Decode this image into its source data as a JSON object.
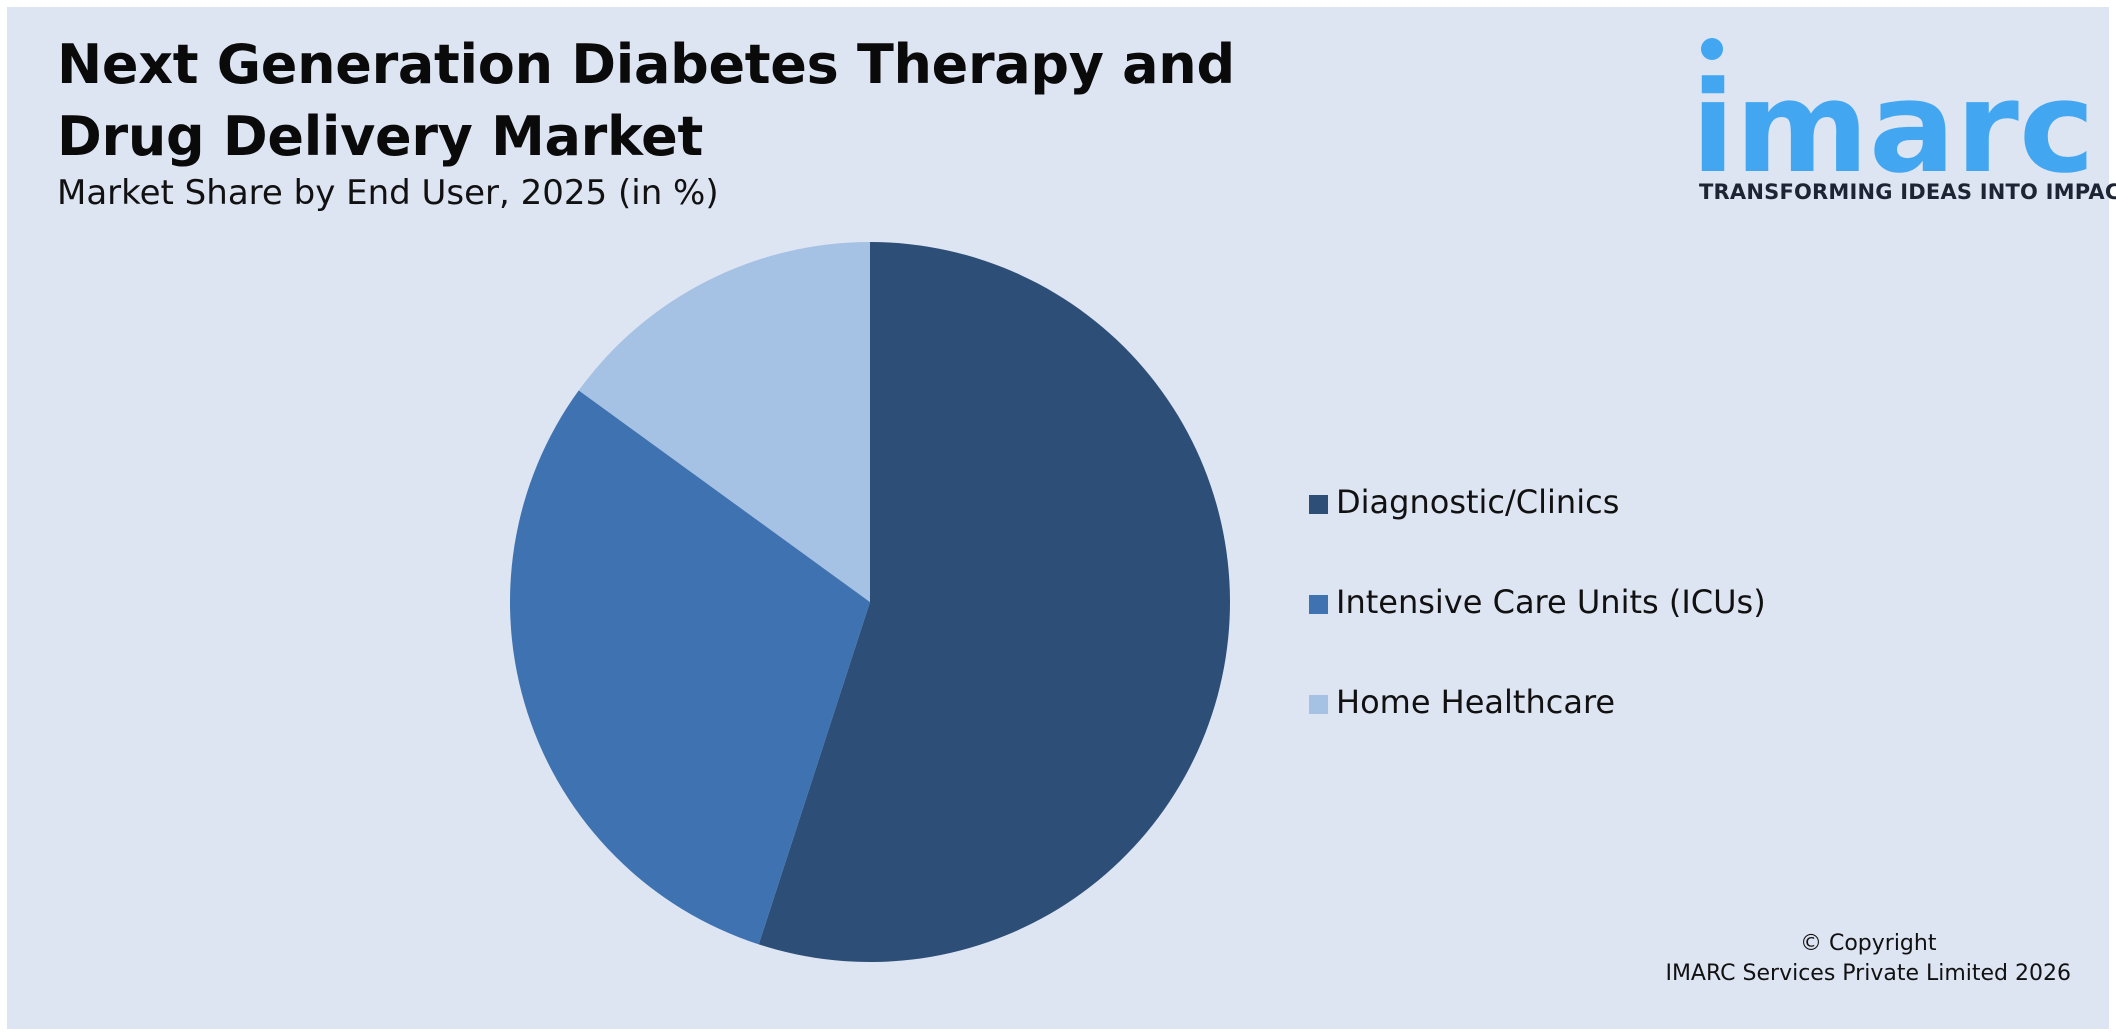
{
  "header": {
    "title": "Next Generation Diabetes Therapy and Drug Delivery Market",
    "subtitle": "Market Share by End User, 2025 (in %)"
  },
  "logo": {
    "wordmark": "imarc",
    "tagline": "TRANSFORMING IDEAS INTO IMPACT",
    "color": "#42a7f0"
  },
  "chart_data": {
    "type": "pie",
    "title": "Next Generation Diabetes Therapy and Drug Delivery Market",
    "subtitle": "Market Share by End User, 2025 (in %)",
    "categories": [
      "Diagnostic/Clinics",
      "Intensive Care Units (ICUs)",
      "Home Healthcare"
    ],
    "values": [
      55,
      30,
      15
    ],
    "colors": [
      "#2d4e77",
      "#3f72b0",
      "#a5c1e3"
    ],
    "start_angle_deg": 0,
    "direction": "clockwise",
    "legend_position": "right"
  },
  "footer": {
    "copyright_line1": "© Copyright",
    "copyright_line2": "IMARC Services Private Limited 2026"
  }
}
